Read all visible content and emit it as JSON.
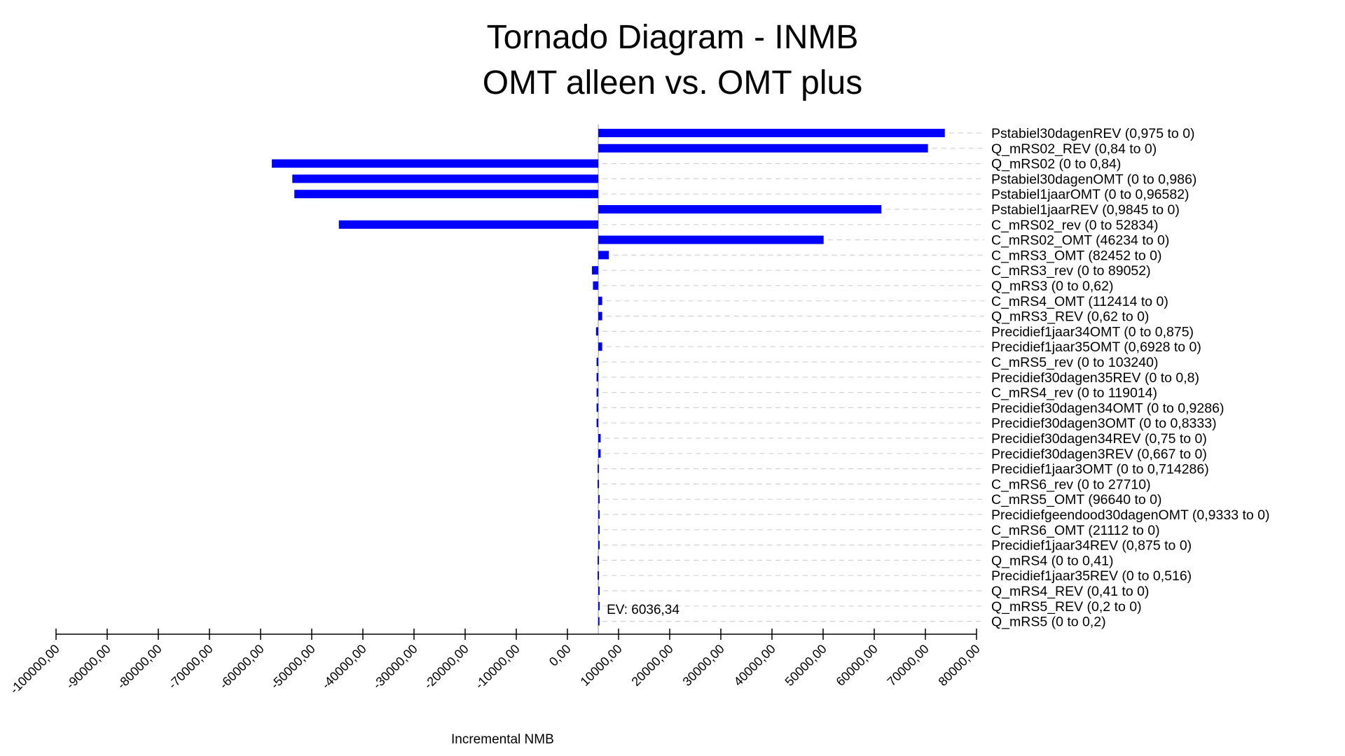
{
  "chart_data": {
    "type": "bar",
    "orientation": "horizontal",
    "style": "tornado",
    "title": "Tornado Diagram - INMB",
    "subtitle": "OMT alleen vs. OMT plus",
    "xlabel": "Incremental NMB",
    "xlim": [
      -100000,
      80000
    ],
    "x_ticks": [
      "-100000,00",
      "-90000,00",
      "-80000,00",
      "-70000,00",
      "-60000,00",
      "-50000,00",
      "-40000,00",
      "-30000,00",
      "-20000,00",
      "-10000,00",
      "0,00",
      "10000,00",
      "20000,00",
      "30000,00",
      "40000,00",
      "50000,00",
      "60000,00",
      "70000,00",
      "80000,00"
    ],
    "baseline": 6036.34,
    "ev_label": "EV: 6036,34",
    "bar_color": "#0000ff",
    "grid": "dashed leader lines",
    "bars": [
      {
        "label": "Pstabiel30dagenREV (0,975 to 0)",
        "value": 73800
      },
      {
        "label": "Q_mRS02_REV (0,84 to 0)",
        "value": 70500
      },
      {
        "label": "Q_mRS02 (0 to 0,84)",
        "value": -57800
      },
      {
        "label": "Pstabiel30dagenOMT (0 to 0,986)",
        "value": -53800
      },
      {
        "label": "Pstabiel1jaarOMT (0 to 0,96582)",
        "value": -53400
      },
      {
        "label": "Pstabiel1jaarREV (0,9845 to 0)",
        "value": 61400
      },
      {
        "label": "C_mRS02_rev (0 to 52834)",
        "value": -44700
      },
      {
        "label": "C_mRS02_OMT (46234 to 0)",
        "value": 50100
      },
      {
        "label": "C_mRS3_OMT (82452 to 0)",
        "value": 8100
      },
      {
        "label": "C_mRS3_rev (0 to 89052)",
        "value": 4800
      },
      {
        "label": "Q_mRS3 (0 to 0,62)",
        "value": 5000
      },
      {
        "label": "C_mRS4_OMT (112414 to 0)",
        "value": 6800
      },
      {
        "label": "Q_mRS3_REV (0,62 to 0)",
        "value": 6800
      },
      {
        "label": "Precidief1jaar34OMT (0 to 0,875)",
        "value": 5600
      },
      {
        "label": "Precidief1jaar35OMT (0,6928 to 0)",
        "value": 6800
      },
      {
        "label": "C_mRS5_rev (0 to 103240)",
        "value": 5700
      },
      {
        "label": "Precidief30dagen35REV (0 to 0,8)",
        "value": 5700
      },
      {
        "label": "C_mRS4_rev (0 to 119014)",
        "value": 5700
      },
      {
        "label": "Precidief30dagen34OMT (0 to 0,9286)",
        "value": 5700
      },
      {
        "label": "Precidief30dagen3OMT (0 to 0,8333)",
        "value": 5700
      },
      {
        "label": "Precidief30dagen34REV (0,75 to 0)",
        "value": 6500
      },
      {
        "label": "Precidief30dagen3REV (0,667 to 0)",
        "value": 6500
      },
      {
        "label": "Precidief1jaar3OMT (0 to 0,714286)",
        "value": 5900
      },
      {
        "label": "C_mRS6_rev (0 to 27710)",
        "value": 5900
      },
      {
        "label": "C_mRS5_OMT (96640 to 0)",
        "value": 6300
      },
      {
        "label": "Precidiefgeendood30dagenOMT (0,9333 to 0)",
        "value": 6300
      },
      {
        "label": "C_mRS6_OMT (21112 to 0)",
        "value": 6200
      },
      {
        "label": "Precidief1jaar34REV (0,875 to 0)",
        "value": 6200
      },
      {
        "label": "Q_mRS4 (0 to 0,41)",
        "value": 5900
      },
      {
        "label": "Precidief1jaar35REV (0 to 0,516)",
        "value": 5900
      },
      {
        "label": "Q_mRS4_REV (0,41 to 0)",
        "value": 6200
      },
      {
        "label": "Q_mRS5_REV (0,2 to 0)",
        "value": 6100
      },
      {
        "label": "Q_mRS5 (0 to 0,2)",
        "value": 6000
      }
    ]
  }
}
